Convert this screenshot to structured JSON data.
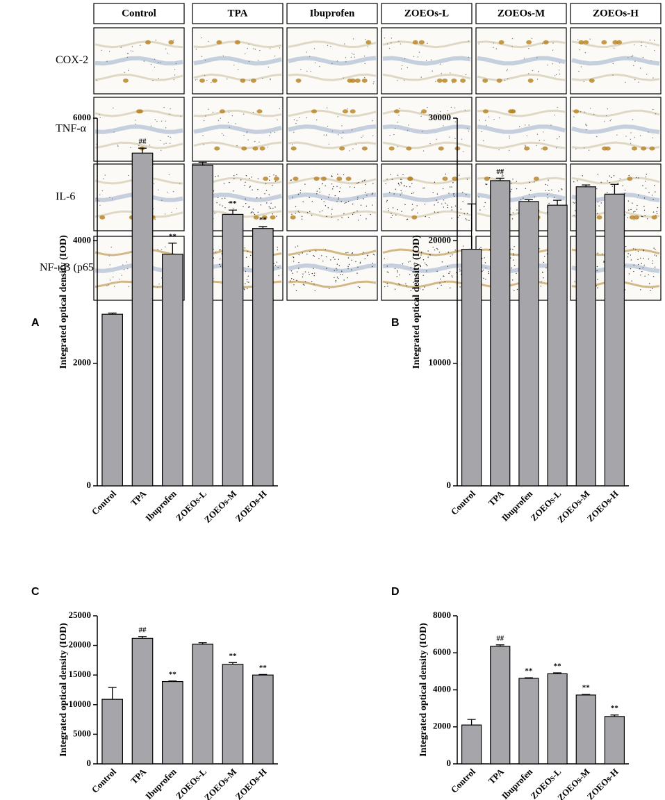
{
  "figure": {
    "columns": [
      "Control",
      "TPA",
      "Ibuprofen",
      "ZOEOs-L",
      "ZOEOs-M",
      "ZOEOs-H"
    ],
    "rows": [
      "COX-2",
      "TNF-α",
      "IL-6",
      "NF-κB (p65)"
    ]
  },
  "chart_data": [
    {
      "type": "bar",
      "label": "A",
      "y_label": "Integrated optical density (IOD)",
      "categories": [
        "Control",
        "TPA",
        "Ibuprofen",
        "ZOEOs-L",
        "ZOEOs-M",
        "ZOEOs-H"
      ],
      "values": [
        2800,
        5430,
        3780,
        5230,
        4430,
        4200
      ],
      "errors": [
        20,
        80,
        180,
        50,
        70,
        30
      ],
      "annotations": [
        null,
        "##",
        "**",
        null,
        "**",
        "**"
      ],
      "color": "#a6a6aa",
      "ylim": [
        0,
        6000
      ],
      "yticks": [
        0,
        2000,
        4000,
        6000
      ]
    },
    {
      "type": "bar",
      "label": "B",
      "y_label": "Integrated optical density (IOD)",
      "categories": [
        "Control",
        "TPA",
        "Ibuprofen",
        "ZOEOs-L",
        "ZOEOs-M",
        "ZOEOs-H"
      ],
      "values": [
        19300,
        24900,
        23200,
        22900,
        24400,
        23800
      ],
      "errors": [
        3700,
        200,
        150,
        400,
        150,
        800
      ],
      "annotations": [
        null,
        "##",
        null,
        null,
        null,
        null
      ],
      "color": "#a6a6aa",
      "ylim": [
        0,
        30000
      ],
      "yticks": [
        0,
        10000,
        20000,
        30000
      ]
    },
    {
      "type": "bar",
      "label": "C",
      "y_label": "Integrated optical density (IOD)",
      "categories": [
        "Control",
        "TPA",
        "Ibuprofen",
        "ZOEOs-L",
        "ZOEOs-M",
        "ZOEOs-H"
      ],
      "values": [
        10900,
        21200,
        13900,
        20200,
        16800,
        15000
      ],
      "errors": [
        2000,
        300,
        100,
        250,
        300,
        100
      ],
      "annotations": [
        null,
        "##",
        "**",
        null,
        "**",
        "**"
      ],
      "color": "#a6a6aa",
      "ylim": [
        0,
        25000
      ],
      "yticks": [
        0,
        5000,
        10000,
        15000,
        20000,
        25000
      ]
    },
    {
      "type": "bar",
      "label": "D",
      "y_label": "Integrated optical density (IOD)",
      "categories": [
        "Control",
        "TPA",
        "Ibuprofen",
        "ZOEOs-L",
        "ZOEOs-M",
        "ZOEOs-H"
      ],
      "values": [
        2100,
        6350,
        4620,
        4870,
        3720,
        2560
      ],
      "errors": [
        300,
        80,
        30,
        50,
        30,
        80
      ],
      "annotations": [
        null,
        "##",
        "**",
        "**",
        "**",
        "**"
      ],
      "color": "#a6a6aa",
      "ylim": [
        0,
        8000
      ],
      "yticks": [
        0,
        2000,
        4000,
        6000,
        8000
      ]
    }
  ]
}
